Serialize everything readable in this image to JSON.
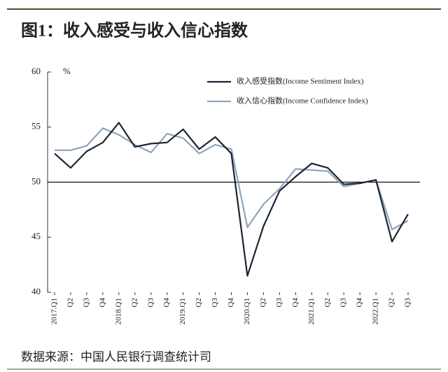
{
  "chart_data": {
    "type": "line",
    "title": "图1：收入感受与收入信心指数",
    "source": "数据来源：中国人民银行调查统计司",
    "y_unit": "%",
    "categories": [
      "2017.Q1",
      "Q2",
      "Q3",
      "Q4",
      "2018.Q1",
      "Q2",
      "Q3",
      "Q4",
      "2019.Q1",
      "Q2",
      "Q3",
      "Q4",
      "2020.Q1",
      "Q2",
      "Q3",
      "Q4",
      "2021.Q1",
      "Q2",
      "Q3",
      "Q4",
      "2022.Q1",
      "Q2",
      "Q3"
    ],
    "series": [
      {
        "name": "收入感受指数(Income Sentiment Index)",
        "color": "#1c2433",
        "values": [
          52.6,
          51.3,
          52.8,
          53.6,
          55.4,
          53.2,
          53.5,
          53.6,
          54.8,
          53.0,
          54.1,
          52.6,
          41.5,
          46.0,
          49.2,
          50.5,
          51.7,
          51.3,
          49.8,
          49.9,
          50.2,
          44.6,
          47.1
        ]
      },
      {
        "name": "收入信心指数(Income Confidence Index)",
        "color": "#8fa3bf",
        "values": [
          52.9,
          52.9,
          53.3,
          54.9,
          54.3,
          53.4,
          52.7,
          54.4,
          54.0,
          52.6,
          53.4,
          53.0,
          45.9,
          48.0,
          49.4,
          51.2,
          51.1,
          51.0,
          49.6,
          49.9,
          50.2,
          45.7,
          46.5
        ]
      }
    ],
    "ylim": [
      40,
      60
    ],
    "yticks": [
      40,
      45,
      50,
      55,
      60
    ],
    "hline": 50
  }
}
